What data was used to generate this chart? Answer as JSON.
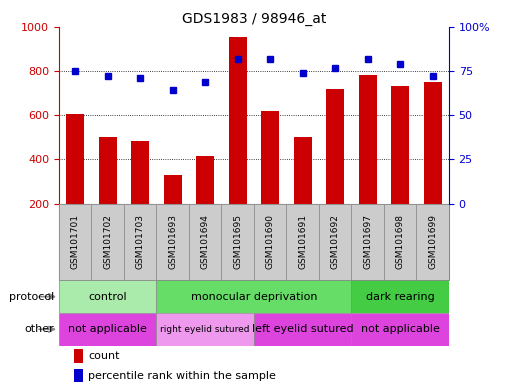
{
  "title": "GDS1983 / 98946_at",
  "samples": [
    "GSM101701",
    "GSM101702",
    "GSM101703",
    "GSM101693",
    "GSM101694",
    "GSM101695",
    "GSM101690",
    "GSM101691",
    "GSM101692",
    "GSM101697",
    "GSM101698",
    "GSM101699"
  ],
  "counts": [
    605,
    500,
    485,
    330,
    415,
    955,
    620,
    500,
    720,
    780,
    730,
    750
  ],
  "percentiles": [
    75,
    72,
    71,
    64,
    69,
    82,
    82,
    74,
    77,
    82,
    79,
    72
  ],
  "ylim_left": [
    200,
    1000
  ],
  "ylim_right": [
    0,
    100
  ],
  "yticks_left": [
    200,
    400,
    600,
    800,
    1000
  ],
  "yticks_right": [
    0,
    25,
    50,
    75,
    100
  ],
  "bar_color": "#cc0000",
  "dot_color": "#0000cc",
  "protocol_groups": [
    {
      "label": "control",
      "start": 0,
      "end": 3,
      "color": "#aaeaaa"
    },
    {
      "label": "monocular deprivation",
      "start": 3,
      "end": 9,
      "color": "#66dd66"
    },
    {
      "label": "dark rearing",
      "start": 9,
      "end": 12,
      "color": "#44cc44"
    }
  ],
  "other_groups": [
    {
      "label": "not applicable",
      "start": 0,
      "end": 3,
      "color": "#dd44dd"
    },
    {
      "label": "right eyelid sutured",
      "start": 3,
      "end": 6,
      "color": "#ee99ee"
    },
    {
      "label": "left eyelid sutured",
      "start": 6,
      "end": 9,
      "color": "#dd44dd"
    },
    {
      "label": "not applicable",
      "start": 9,
      "end": 12,
      "color": "#dd44dd"
    }
  ],
  "protocol_label": "protocol",
  "other_label": "other",
  "legend_count_label": "count",
  "legend_pct_label": "percentile rank within the sample",
  "sample_bg_color": "#cccccc",
  "sample_text_color": "#000000",
  "border_color": "#888888",
  "grid_line_color": "#000000"
}
